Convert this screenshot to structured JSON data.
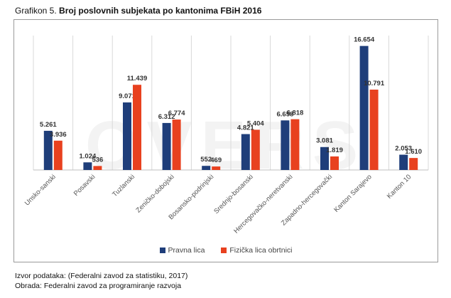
{
  "title_prefix": "Grafikon 5. ",
  "title_main": "Broj poslovnih subjekata po kantonima FBiH 2016",
  "watermark": "OVERS",
  "footer": {
    "source": "Izvor podataka: (Federalni zavod za statistiku, 2017)",
    "processing": "Obrada:  Federalni zavod za programiranje razvoja"
  },
  "colors": {
    "series1": "#1f3e7a",
    "series2": "#e8411f"
  },
  "chart_data": {
    "type": "bar",
    "title": "Broj poslovnih subjekata po kantonima FBiH 2016",
    "categories": [
      "Unsko-sanski",
      "Posavski",
      "Tuzlanski",
      "Zeničko-dobojski",
      "Bosansko-podrinjski",
      "Srednjo-bosanski",
      "Hercegovačko-neretvanski",
      "Zapadno-hercegovački",
      "Kanton Sarajevo",
      "Kanton 10"
    ],
    "series": [
      {
        "name": "Pravna lica",
        "values": [
          5261,
          1024,
          9071,
          6312,
          552,
          4821,
          6658,
          3081,
          16654,
          2053
        ],
        "labels": [
          "5.261",
          "1.024",
          "9.071",
          "6.312",
          "552",
          "4.821",
          "6.658",
          "3.081",
          "16.654",
          "2.053"
        ]
      },
      {
        "name": "Fizička lica obrtnici",
        "values": [
          3936,
          536,
          11439,
          6774,
          469,
          5404,
          6818,
          1819,
          10791,
          1610
        ],
        "labels": [
          "3.936",
          "536",
          "11.439",
          "6.774",
          "469",
          "5.404",
          "6.818",
          "1.819",
          "10.791",
          "1.610"
        ]
      }
    ],
    "ylim": [
      0,
      17000
    ],
    "grid": "vertical",
    "legend": "bottom"
  }
}
